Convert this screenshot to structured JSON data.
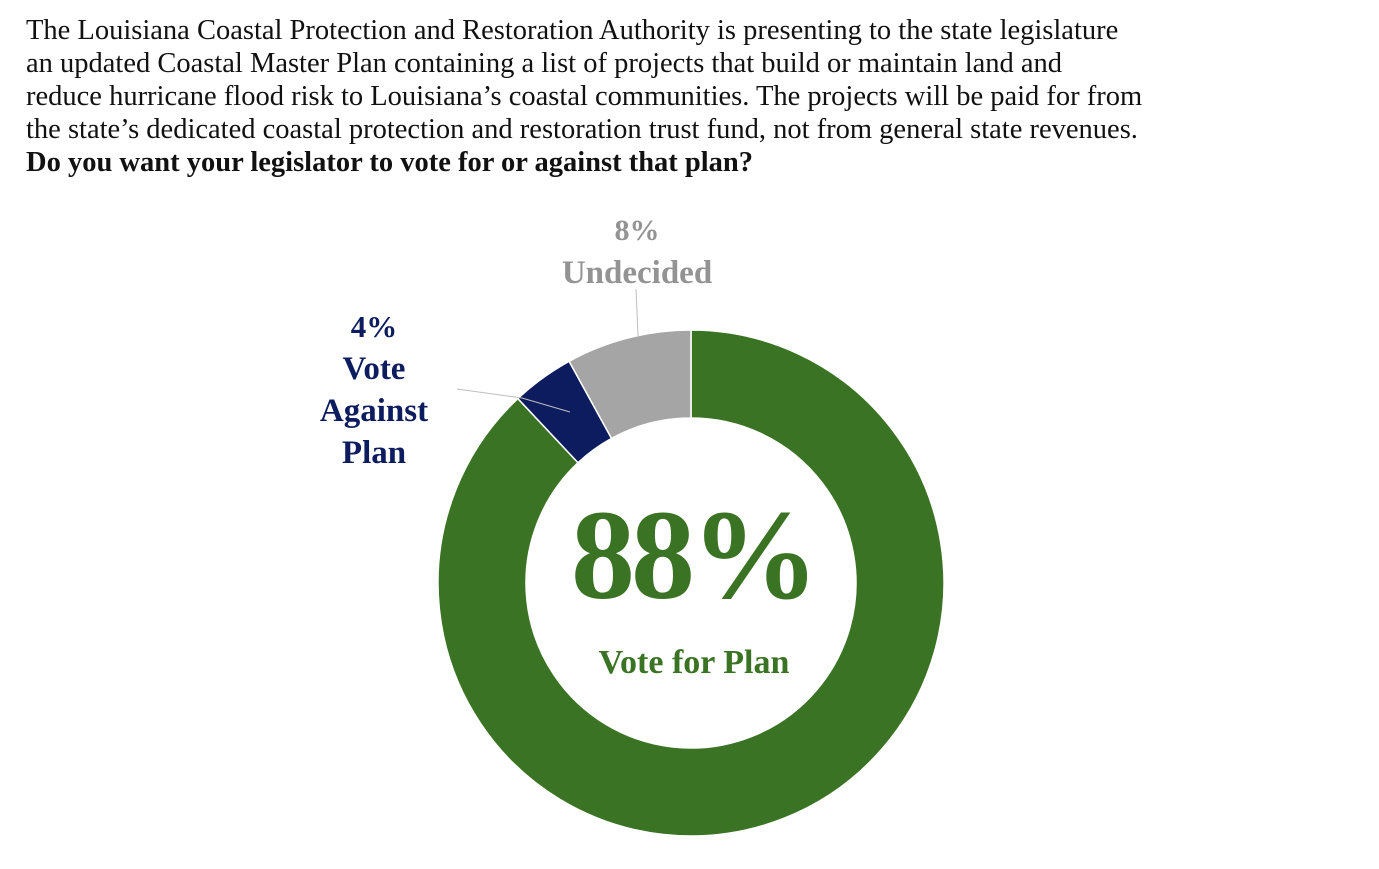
{
  "question": {
    "lines": [
      "The Louisiana Coastal Protection and Restoration Authority is presenting to the state legislature",
      "an updated Coastal Master Plan containing a list of projects that build or maintain land and",
      "reduce hurricane flood risk to Louisiana’s coastal communities. The projects will be paid for from",
      "the state’s dedicated coastal protection and restoration trust fund, not from general state revenues."
    ],
    "bold": "Do you want your legislator to vote for or against that plan?"
  },
  "chart_data": {
    "type": "pie",
    "style": "donut",
    "title": "",
    "slices": [
      {
        "name": "Vote for Plan",
        "label_lines": [
          "Vote for Plan"
        ],
        "value_label": "88%",
        "value": 88,
        "color": "#3b7324"
      },
      {
        "name": "Vote Against Plan",
        "label_lines": [
          "Vote",
          "Against",
          "Plan"
        ],
        "value_label": "4%",
        "value": 4,
        "color": "#0c1c5e"
      },
      {
        "name": "Undecided",
        "label_lines": [
          "Undecided"
        ],
        "value_label": "8%",
        "value": 8,
        "color": "#a5a5a5"
      }
    ],
    "start": "top",
    "direction": "clockwise",
    "legend": "none"
  }
}
